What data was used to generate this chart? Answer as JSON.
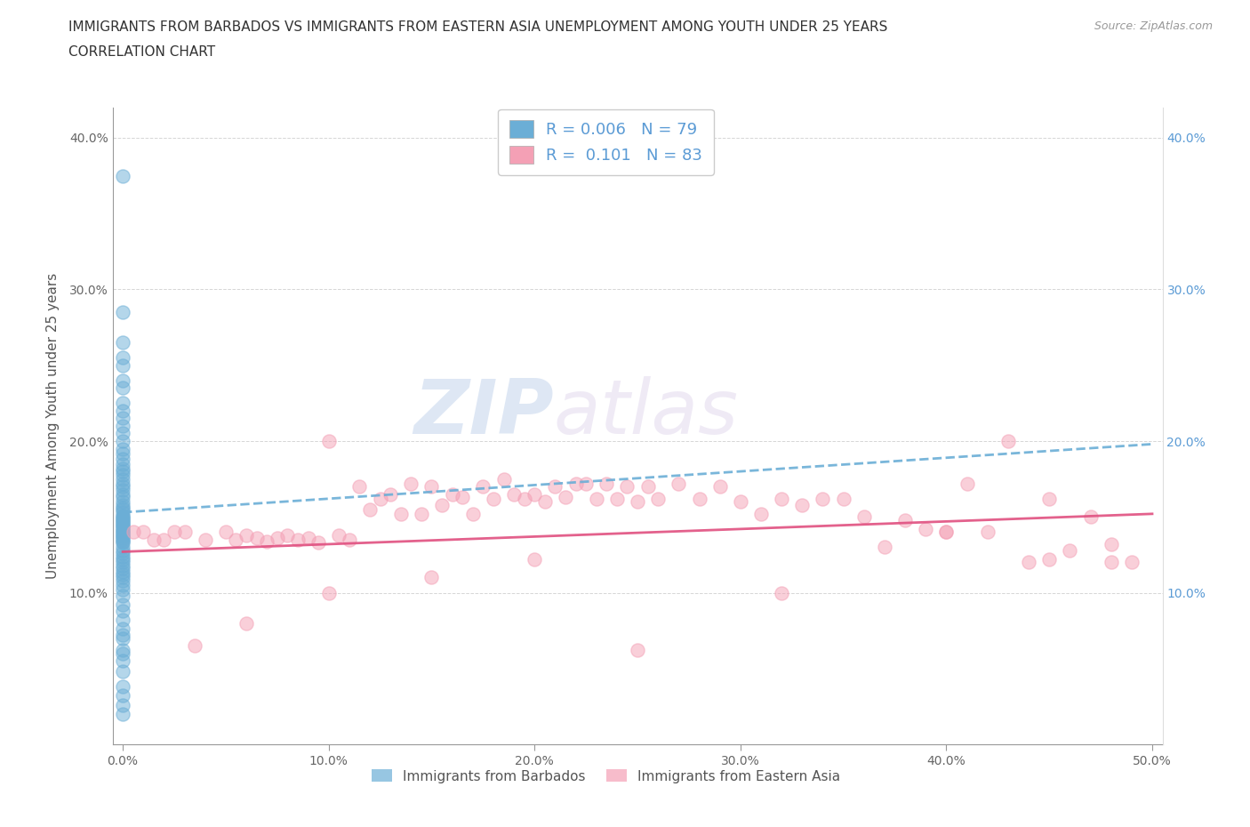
{
  "title_line1": "IMMIGRANTS FROM BARBADOS VS IMMIGRANTS FROM EASTERN ASIA UNEMPLOYMENT AMONG YOUTH UNDER 25 YEARS",
  "title_line2": "CORRELATION CHART",
  "source": "Source: ZipAtlas.com",
  "ylabel": "Unemployment Among Youth under 25 years",
  "xlim": [
    -0.005,
    0.505
  ],
  "ylim": [
    0.0,
    0.42
  ],
  "x_ticks": [
    0.0,
    0.1,
    0.2,
    0.3,
    0.4,
    0.5
  ],
  "x_tick_labels": [
    "0.0%",
    "10.0%",
    "20.0%",
    "30.0%",
    "40.0%",
    "50.0%"
  ],
  "y_ticks": [
    0.0,
    0.1,
    0.2,
    0.3,
    0.4
  ],
  "y_tick_labels": [
    "",
    "10.0%",
    "20.0%",
    "30.0%",
    "40.0%"
  ],
  "right_y_ticks": [
    0.1,
    0.2,
    0.3,
    0.4
  ],
  "right_y_tick_labels": [
    "10.0%",
    "20.0%",
    "30.0%",
    "40.0%"
  ],
  "barbados_color": "#6baed6",
  "eastern_asia_color": "#f4a0b5",
  "barbados_trendline_color": "#6baed6",
  "eastern_asia_trendline_color": "#e05080",
  "legend_barbados_label": "Immigrants from Barbados",
  "legend_eastern_asia_label": "Immigrants from Eastern Asia",
  "R_barbados": "0.006",
  "N_barbados": 79,
  "R_eastern_asia": "0.101",
  "N_eastern_asia": 83,
  "watermark_zip": "ZIP",
  "watermark_atlas": "atlas",
  "barbados_x": [
    0.0,
    0.0,
    0.0,
    0.0,
    0.0,
    0.0,
    0.0,
    0.0,
    0.0,
    0.0,
    0.0,
    0.0,
    0.0,
    0.0,
    0.0,
    0.0,
    0.0,
    0.0,
    0.0,
    0.0,
    0.0,
    0.0,
    0.0,
    0.0,
    0.0,
    0.0,
    0.0,
    0.0,
    0.0,
    0.0,
    0.0,
    0.0,
    0.0,
    0.0,
    0.0,
    0.0,
    0.0,
    0.0,
    0.0,
    0.0,
    0.0,
    0.0,
    0.0,
    0.0,
    0.0,
    0.0,
    0.0,
    0.0,
    0.0,
    0.0,
    0.0,
    0.0,
    0.0,
    0.0,
    0.0,
    0.0,
    0.0,
    0.0,
    0.0,
    0.0,
    0.0,
    0.0,
    0.0,
    0.0,
    0.0,
    0.0,
    0.0,
    0.0,
    0.0,
    0.0,
    0.0,
    0.0,
    0.0,
    0.0,
    0.0,
    0.0,
    0.0,
    0.0,
    0.0
  ],
  "barbados_y": [
    0.375,
    0.285,
    0.265,
    0.255,
    0.25,
    0.24,
    0.235,
    0.225,
    0.22,
    0.215,
    0.21,
    0.205,
    0.2,
    0.195,
    0.192,
    0.188,
    0.185,
    0.182,
    0.18,
    0.178,
    0.175,
    0.172,
    0.17,
    0.168,
    0.165,
    0.163,
    0.16,
    0.158,
    0.156,
    0.155,
    0.153,
    0.151,
    0.15,
    0.149,
    0.148,
    0.147,
    0.146,
    0.145,
    0.144,
    0.143,
    0.142,
    0.141,
    0.14,
    0.139,
    0.138,
    0.137,
    0.136,
    0.135,
    0.134,
    0.133,
    0.13,
    0.128,
    0.126,
    0.124,
    0.122,
    0.12,
    0.118,
    0.116,
    0.114,
    0.112,
    0.11,
    0.108,
    0.105,
    0.102,
    0.098,
    0.092,
    0.088,
    0.082,
    0.076,
    0.07,
    0.062,
    0.055,
    0.048,
    0.038,
    0.032,
    0.026,
    0.02,
    0.072,
    0.06
  ],
  "eastern_x": [
    0.005,
    0.01,
    0.015,
    0.02,
    0.025,
    0.03,
    0.04,
    0.05,
    0.055,
    0.06,
    0.065,
    0.07,
    0.075,
    0.08,
    0.085,
    0.09,
    0.095,
    0.1,
    0.105,
    0.11,
    0.115,
    0.12,
    0.125,
    0.13,
    0.135,
    0.14,
    0.145,
    0.15,
    0.155,
    0.16,
    0.165,
    0.17,
    0.175,
    0.18,
    0.185,
    0.19,
    0.195,
    0.2,
    0.205,
    0.21,
    0.215,
    0.22,
    0.225,
    0.23,
    0.235,
    0.24,
    0.245,
    0.25,
    0.255,
    0.26,
    0.27,
    0.28,
    0.29,
    0.3,
    0.31,
    0.32,
    0.33,
    0.34,
    0.35,
    0.36,
    0.37,
    0.38,
    0.39,
    0.4,
    0.41,
    0.42,
    0.43,
    0.44,
    0.45,
    0.46,
    0.47,
    0.48,
    0.49,
    0.25,
    0.32,
    0.4,
    0.45,
    0.48,
    0.2,
    0.15,
    0.1,
    0.06,
    0.035
  ],
  "eastern_y": [
    0.14,
    0.14,
    0.135,
    0.135,
    0.14,
    0.14,
    0.135,
    0.14,
    0.135,
    0.138,
    0.136,
    0.134,
    0.136,
    0.138,
    0.135,
    0.136,
    0.133,
    0.2,
    0.138,
    0.135,
    0.17,
    0.155,
    0.162,
    0.165,
    0.152,
    0.172,
    0.152,
    0.17,
    0.158,
    0.165,
    0.163,
    0.152,
    0.17,
    0.162,
    0.175,
    0.165,
    0.162,
    0.165,
    0.16,
    0.17,
    0.163,
    0.172,
    0.172,
    0.162,
    0.172,
    0.162,
    0.17,
    0.16,
    0.17,
    0.162,
    0.172,
    0.162,
    0.17,
    0.16,
    0.152,
    0.162,
    0.158,
    0.162,
    0.162,
    0.15,
    0.13,
    0.148,
    0.142,
    0.14,
    0.172,
    0.14,
    0.2,
    0.12,
    0.162,
    0.128,
    0.15,
    0.12,
    0.12,
    0.062,
    0.1,
    0.14,
    0.122,
    0.132,
    0.122,
    0.11,
    0.1,
    0.08,
    0.065
  ],
  "barbados_trend_x": [
    0.0,
    0.5
  ],
  "barbados_trend_y": [
    0.153,
    0.198
  ],
  "eastern_trend_x": [
    0.0,
    0.5
  ],
  "eastern_trend_y": [
    0.127,
    0.152
  ]
}
